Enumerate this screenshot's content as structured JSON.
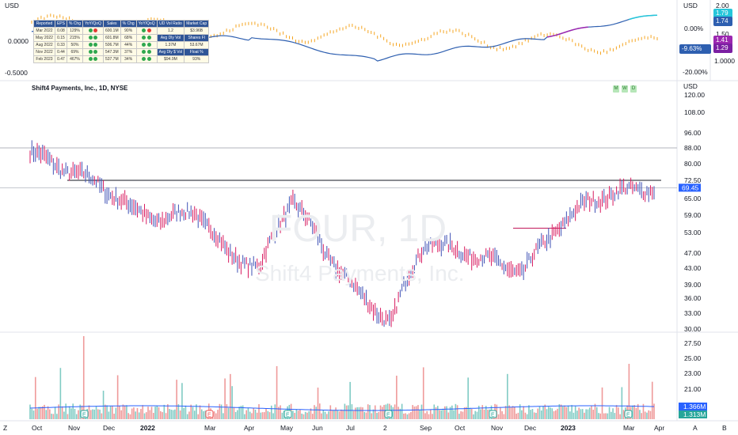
{
  "header": {
    "currency_top": "USD",
    "currency_main": "USD",
    "chart_title": "Shift4 Payments, Inc., 1D, NYSE",
    "watermark_ticker": "FOUR, 1D",
    "watermark_name": "Shift4 Payments, Inc."
  },
  "timeframes": [
    "M",
    "W",
    "D"
  ],
  "top_panel": {
    "left_ticks": [
      "0.0000",
      "-0.5000"
    ],
    "mid_ticks": [
      "0.00%",
      "-20.00%"
    ],
    "right_ticks": [
      "2.00",
      "1.50",
      "1.0000"
    ],
    "badges": {
      "green": "1.79",
      "blue": "1.74",
      "purple1": "1.41",
      "purple2": "1.29",
      "pct": "-9.63%"
    },
    "colors": {
      "blue_line": "#2e5fb0",
      "orange": "#f5a623",
      "purple": "#9c27b0",
      "teal": "#26c6da"
    }
  },
  "fundamentals_table": {
    "headers": [
      "Reported",
      "EPS",
      "% Chg",
      "YoY/QoQ",
      "Sales",
      "% Chg",
      "YoY/QoQ",
      "UD Vol Ratio",
      "Market Cap"
    ],
    "rows": [
      {
        "period": "Mar 2022",
        "eps": "0.08",
        "eps_chg": "129%",
        "d1": "g",
        "d2": "r",
        "sales": "600.1M",
        "sales_chg": "90%",
        "d3": "g",
        "d4": "r",
        "extra1": "1.2",
        "extra2": "$3.96B"
      },
      {
        "period": "May 2022",
        "eps": "0.15",
        "eps_chg": "215%",
        "d1": "g",
        "d2": "g",
        "sales": "601.8M",
        "sales_chg": "68%",
        "d3": "g",
        "d4": "g",
        "extra1": "Avg Dly Vol",
        "extra2": "Shares Fl"
      },
      {
        "period": "Aug 2022",
        "eps": "0.33",
        "eps_chg": "50%",
        "d1": "g",
        "d2": "g",
        "sales": "506.7M",
        "sales_chg": "44%",
        "d3": "g",
        "d4": "g",
        "extra1": "1.37M",
        "extra2": "53.67M"
      },
      {
        "period": "Nov 2022",
        "eps": "0.44",
        "eps_chg": "69%",
        "d1": "g",
        "d2": "g",
        "sales": "547.3M",
        "sales_chg": "37%",
        "d3": "g",
        "d4": "g",
        "extra1": "Avg Dly $ Vol",
        "extra2": "Float %"
      },
      {
        "period": "Feb 2023",
        "eps": "0.47",
        "eps_chg": "467%",
        "d1": "g",
        "d2": "g",
        "sales": "537.7M",
        "sales_chg": "34%",
        "d3": "g",
        "d4": "g",
        "extra1": "$94.9M",
        "extra2": "93%"
      }
    ]
  },
  "price_axis": {
    "ticks": [
      "120.00",
      "108.00",
      "96.00",
      "88.00",
      "80.00",
      "72.50",
      "65.00",
      "59.00",
      "53.00",
      "47.00",
      "43.00",
      "39.00",
      "36.00",
      "33.00",
      "30.00"
    ],
    "last_price": "69.45",
    "last_color": "#2962ff"
  },
  "volume_axis": {
    "ticks": [
      "27.50",
      "25.00",
      "23.00",
      "21.00"
    ],
    "badge1": "1.366M",
    "badge2": "1.313M"
  },
  "time_axis": {
    "labels": [
      "Oct",
      "Nov",
      "Dec",
      "2022",
      "Mar",
      "Apr",
      "May",
      "Jun",
      "Jul",
      "2",
      "Sep",
      "Oct",
      "Nov",
      "Dec",
      "2023",
      "Mar",
      "Apr"
    ],
    "left_mark": "Z",
    "right_marks": [
      "A",
      "B"
    ]
  },
  "earnings_mark": "E",
  "chart_data": {
    "type": "bar",
    "title": "Shift4 Payments, Inc., 1D, NYSE",
    "ylabel": "USD",
    "ylim": [
      30,
      120
    ],
    "x_range": [
      "2021-10",
      "2023-03"
    ],
    "price_path": [
      {
        "t": "Oct 2021",
        "price": 86
      },
      {
        "t": "mid Oct 2021",
        "price": 78
      },
      {
        "t": "Nov 2021",
        "price": 72
      },
      {
        "t": "mid Nov 2021",
        "price": 62
      },
      {
        "t": "Dec 2021",
        "price": 57
      },
      {
        "t": "Jan 2022",
        "price": 61
      },
      {
        "t": "Feb 2022",
        "price": 47
      },
      {
        "t": "Mar 2022",
        "price": 43
      },
      {
        "t": "Apr 2022",
        "price": 65
      },
      {
        "t": "May 2022",
        "price": 47
      },
      {
        "t": "Jun 2022",
        "price": 37
      },
      {
        "t": "Jul 2022",
        "price": 31
      },
      {
        "t": "Aug 2022",
        "price": 50
      },
      {
        "t": "Sep 2022",
        "price": 48
      },
      {
        "t": "Oct 2022",
        "price": 45
      },
      {
        "t": "Nov 2022",
        "price": 42
      },
      {
        "t": "Dec 2022",
        "price": 54
      },
      {
        "t": "Jan 2023",
        "price": 64
      },
      {
        "t": "Feb 2023",
        "price": 68
      },
      {
        "t": "Mar 2023",
        "price": 69.45
      }
    ],
    "horizontal_levels": [
      88,
      72.5
    ],
    "volume_unit": "M",
    "series": [
      {
        "name": "Shift4 Payments, Inc.",
        "values": [
          86,
          78,
          72,
          62,
          57,
          61,
          47,
          43,
          65,
          47,
          37,
          31,
          50,
          48,
          45,
          42,
          54,
          64,
          68,
          69.45
        ]
      }
    ]
  }
}
